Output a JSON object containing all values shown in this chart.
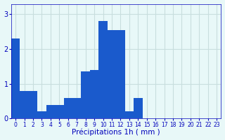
{
  "values": [
    2.3,
    0.8,
    0.8,
    0.2,
    0.4,
    0.4,
    0.6,
    0.6,
    1.35,
    1.4,
    2.8,
    2.55,
    2.55,
    0.2,
    0.6,
    0.0,
    0.0,
    0.0,
    0.0,
    0.0,
    0.0,
    0.0,
    0.0,
    0.0
  ],
  "bar_color": "#1a5acc",
  "background_color": "#e8f8f8",
  "grid_color": "#c8dede",
  "xlabel": "Précipitations 1h ( mm )",
  "ylim": [
    0,
    3.3
  ],
  "yticks": [
    0,
    1,
    2,
    3
  ],
  "tick_color": "#0000bb",
  "label_color": "#0000bb",
  "xlabel_fontsize": 7.5,
  "tick_fontsize": 5.5,
  "ytick_fontsize": 7.0
}
